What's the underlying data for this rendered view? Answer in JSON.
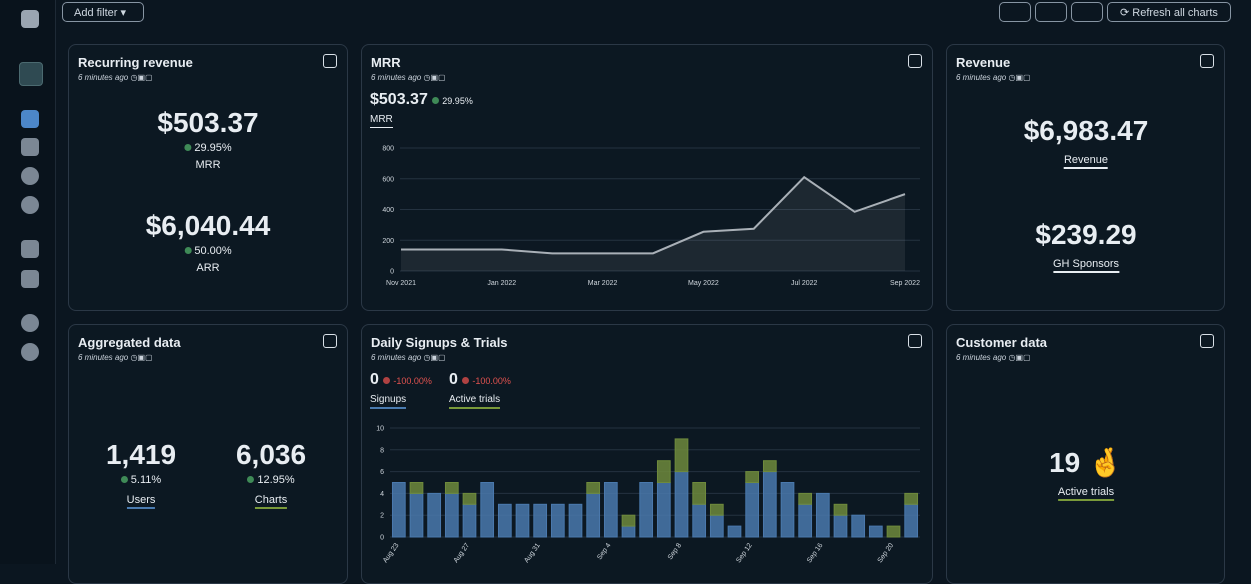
{
  "toolbar": {
    "add_filter": "Add filter",
    "refresh": "Refresh all charts"
  },
  "cards": [
    {
      "title": "Recurring revenue",
      "updated": "6 minutes ago",
      "metrics": [
        {
          "value": "$503.37",
          "change": "29.95%",
          "label": "MRR"
        },
        {
          "value": "$6,040.44",
          "change": "50.00%",
          "label": "ARR"
        }
      ]
    },
    {
      "title": "MRR",
      "updated": "6 minutes ago",
      "metrics": [
        {
          "value": "$503.37",
          "change": "29.95%",
          "label": "MRR"
        }
      ],
      "chart": {
        "type": "line",
        "categories": [
          "Nov 2021",
          null,
          "Jan 2022",
          null,
          "Mar 2022",
          null,
          "May 2022",
          null,
          "Jul 2022",
          null,
          "Sep 2022"
        ],
        "values": [
          140,
          140,
          140,
          115,
          115,
          115,
          255,
          275,
          610,
          385,
          500
        ],
        "color": "#a9b0b7",
        "ylim": [
          0,
          800
        ],
        "yticks": [
          0,
          200,
          400,
          600,
          800
        ],
        "grid": true
      }
    },
    {
      "title": "Revenue",
      "updated": "6 minutes ago",
      "metrics": [
        {
          "value": "$6,983.47",
          "label": "Revenue"
        },
        {
          "value": "$239.29",
          "label": "GH Sponsors"
        }
      ]
    },
    {
      "title": "Aggregated data",
      "updated": "6 minutes ago",
      "metrics": [
        {
          "value": "1,419",
          "change": "5.11%",
          "label": "Users"
        },
        {
          "value": "6,036",
          "change": "12.95%",
          "label": "Charts"
        }
      ]
    },
    {
      "title": "Daily Signups & Trials",
      "updated": "6 minutes ago",
      "metrics": [
        {
          "value": "0",
          "change": "-100.00%"
        },
        {
          "value": "0",
          "change": "-100.00%"
        }
      ],
      "chart": {
        "type": "bar",
        "stacked": true,
        "categories": [
          "Aug 23",
          null,
          null,
          null,
          "Aug 27",
          null,
          null,
          null,
          "Aug 31",
          null,
          null,
          null,
          "Sep 4",
          null,
          null,
          null,
          "Sep 8",
          null,
          null,
          null,
          "Sep 12",
          null,
          null,
          null,
          "Sep 16",
          null,
          null,
          null,
          "Sep 20",
          null
        ],
        "series": [
          {
            "name": "Signups",
            "color": "#4a79ad",
            "values": [
              5,
              4,
              4,
              4,
              3,
              5,
              3,
              3,
              3,
              3,
              3,
              4,
              5,
              1,
              5,
              5,
              6,
              3,
              2,
              1,
              5,
              6,
              5,
              3,
              4,
              2,
              2,
              1,
              0,
              3
            ]
          },
          {
            "name": "Active trials",
            "color": "#6e8a3c",
            "values": [
              0,
              1,
              0,
              1,
              1,
              0,
              0,
              0,
              0,
              0,
              0,
              1,
              0,
              1,
              0,
              2,
              3,
              2,
              1,
              0,
              1,
              1,
              0,
              1,
              0,
              1,
              0,
              0,
              1,
              1
            ]
          }
        ],
        "ylim": [
          0,
          10
        ],
        "yticks": [
          0,
          2,
          4,
          6,
          8,
          10
        ],
        "grid": true
      }
    },
    {
      "title": "Customer data",
      "updated": "6 minutes ago",
      "metrics": [
        {
          "value": "19 🤞",
          "label": "Active trials"
        }
      ]
    }
  ]
}
